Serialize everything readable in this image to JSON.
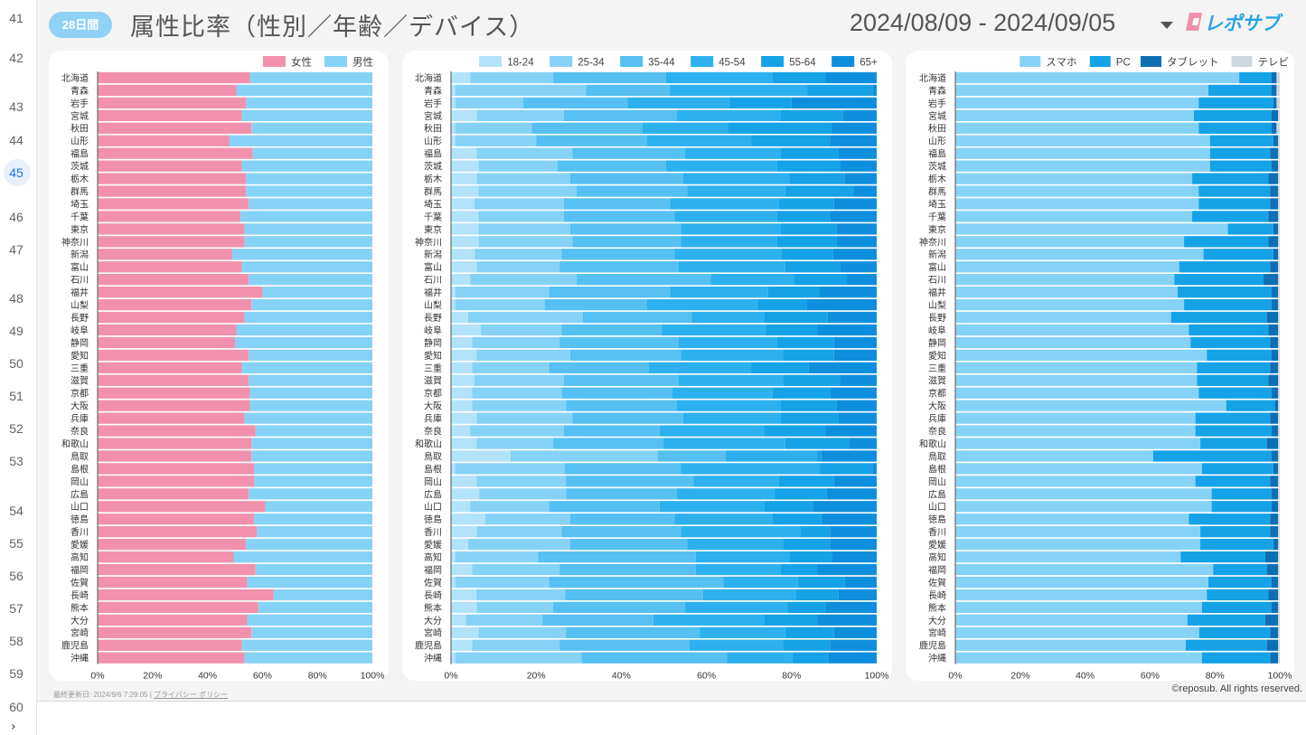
{
  "sheet": {
    "row_numbers": [
      "41",
      "42",
      "43",
      "44",
      "45",
      "46",
      "47",
      "48",
      "49",
      "50",
      "51",
      "52",
      "53",
      "54",
      "55",
      "56",
      "57",
      "58",
      "59",
      "60"
    ],
    "active_row": "45"
  },
  "header": {
    "period_badge": "28日間",
    "title": "属性比率（性別／年齢／デバイス）",
    "date_range": "2024/08/09 - 2024/09/05",
    "logo_text": "レポサブ"
  },
  "footer": {
    "updated": "最終更新日: 2024/9/6 7:29:05",
    "separator": "|",
    "privacy": "プライバシー ポリシー",
    "copyright": "©reposub. All rights reserved."
  },
  "colors": {
    "female": "#f291ad",
    "male": "#86d2f7",
    "age": [
      "#b3e3fb",
      "#86d2f7",
      "#55c0f1",
      "#2db1ee",
      "#15a2e7",
      "#0e8fdd"
    ],
    "device": [
      "#86d2f7",
      "#15a2e7",
      "#0d6eb4",
      "#cdd8de"
    ]
  },
  "chart_data": [
    {
      "type": "bar",
      "orientation": "horizontal",
      "stacked": "percent",
      "categories": [
        "北海道",
        "青森",
        "岩手",
        "宮城",
        "秋田",
        "山形",
        "福島",
        "茨城",
        "栃木",
        "群馬",
        "埼玉",
        "千葉",
        "東京",
        "神奈川",
        "新潟",
        "富山",
        "石川",
        "福井",
        "山梨",
        "長野",
        "岐阜",
        "静岡",
        "愛知",
        "三重",
        "滋賀",
        "京都",
        "大阪",
        "兵庫",
        "奈良",
        "和歌山",
        "鳥取",
        "島根",
        "岡山",
        "広島",
        "山口",
        "徳島",
        "香川",
        "愛媛",
        "高知",
        "福岡",
        "佐賀",
        "長崎",
        "熊本",
        "大分",
        "宮崎",
        "鹿児島",
        "沖縄"
      ],
      "legend": "top-right",
      "xlim": [
        0,
        100
      ],
      "xticks": [
        "0%",
        "20%",
        "40%",
        "60%",
        "80%",
        "100%"
      ],
      "series": [
        {
          "name": "女性",
          "values": [
            55.5,
            50.5,
            54,
            52.5,
            56,
            48,
            56.5,
            52.5,
            54,
            54,
            55,
            52,
            53.5,
            53.5,
            49,
            52.5,
            55,
            60,
            56,
            53.5,
            50.5,
            50,
            55,
            52.5,
            55,
            55.5,
            55.5,
            53.5,
            57.5,
            56,
            56,
            57,
            57,
            55,
            61,
            57,
            58,
            54,
            49.5,
            57.5,
            54.5,
            64,
            58.5,
            54.5,
            56,
            52.5,
            53.5
          ]
        },
        {
          "name": "男性",
          "values": [
            44.5,
            49.5,
            46,
            47.5,
            44,
            52,
            43.5,
            47.5,
            46,
            46,
            45,
            48,
            46.5,
            46.5,
            51,
            47.5,
            45,
            40,
            44,
            46.5,
            49.5,
            50,
            45,
            47.5,
            45,
            44.5,
            44.5,
            46.5,
            42.5,
            44,
            44,
            43,
            43,
            45,
            39,
            43,
            42,
            46,
            50.5,
            42.5,
            45.5,
            36,
            41.5,
            45.5,
            44,
            47.5,
            46.5
          ]
        }
      ]
    },
    {
      "type": "bar",
      "orientation": "horizontal",
      "stacked": "percent",
      "categories": [
        "北海道",
        "青森",
        "岩手",
        "宮城",
        "秋田",
        "山形",
        "福島",
        "茨城",
        "栃木",
        "群馬",
        "埼玉",
        "千葉",
        "東京",
        "神奈川",
        "新潟",
        "富山",
        "石川",
        "福井",
        "山梨",
        "長野",
        "岐阜",
        "静岡",
        "愛知",
        "三重",
        "滋賀",
        "京都",
        "大阪",
        "兵庫",
        "奈良",
        "和歌山",
        "鳥取",
        "島根",
        "岡山",
        "広島",
        "山口",
        "徳島",
        "香川",
        "愛媛",
        "高知",
        "福岡",
        "佐賀",
        "長崎",
        "熊本",
        "大分",
        "宮崎",
        "鹿児島",
        "沖縄"
      ],
      "legend": "top-right",
      "xlim": [
        0,
        100
      ],
      "xticks": [
        "0%",
        "20%",
        "40%",
        "60%",
        "80%",
        "100%"
      ],
      "series": [
        {
          "name": "18-24",
          "values": [
            4.5,
            1,
            1,
            6,
            1,
            1,
            6,
            6.5,
            6,
            6.5,
            5.5,
            6.5,
            6.5,
            6.5,
            5.5,
            6,
            4.5,
            1,
            1,
            4,
            7,
            5,
            6,
            5,
            5.5,
            5,
            5,
            6,
            4.5,
            6,
            14,
            1,
            6,
            6.5,
            4.5,
            8,
            6,
            4,
            1,
            5,
            1,
            6,
            6,
            3.5,
            6.5,
            5,
            1
          ]
        },
        {
          "name": "25-34",
          "values": [
            19.5,
            31,
            16,
            20.5,
            18,
            19,
            22.5,
            18.5,
            22,
            23,
            21,
            20,
            21.5,
            22,
            20,
            19.5,
            25,
            22,
            21,
            27,
            19,
            20.5,
            22,
            18,
            21,
            21,
            22,
            22.5,
            22,
            18,
            34.5,
            26,
            21,
            20,
            18.5,
            20,
            20,
            24,
            19.5,
            20.5,
            22,
            21,
            18,
            18,
            20.5,
            20.5,
            30
          ]
        },
        {
          "name": "35-44",
          "values": [
            26.5,
            20,
            24.5,
            26.5,
            26,
            26,
            26.5,
            25.5,
            26.5,
            26,
            25,
            26,
            26,
            25.5,
            26,
            28,
            31.5,
            28.5,
            24,
            25.5,
            23.5,
            28,
            26,
            23.5,
            27,
            26,
            26,
            26,
            22.5,
            26,
            16,
            27.5,
            30,
            25.5,
            26,
            24.5,
            28,
            27.5,
            37,
            32,
            41,
            32.5,
            31,
            26,
            31.5,
            30.5,
            34.5
          ]
        },
        {
          "name": "45-54",
          "values": [
            25,
            32.5,
            24,
            24.5,
            20,
            24.5,
            22.5,
            26,
            25,
            23,
            25.5,
            24,
            23.5,
            22.5,
            24.5,
            25,
            19.5,
            23,
            26,
            17,
            24.5,
            23,
            24,
            24,
            24.5,
            23.5,
            24.5,
            23,
            24.5,
            28.5,
            21.5,
            33,
            20,
            22.5,
            24.5,
            23,
            28,
            22.5,
            22,
            20,
            17.5,
            22,
            24,
            26,
            20,
            22,
            15.5
          ]
        },
        {
          "name": "55-64",
          "values": [
            12.5,
            15.5,
            14.5,
            14.5,
            24.5,
            18.5,
            13.5,
            15,
            13,
            16,
            13,
            12.5,
            13,
            14,
            12,
            13,
            12.5,
            12,
            11.5,
            15,
            12,
            13.5,
            12,
            13.5,
            13.5,
            13.5,
            13,
            13.5,
            14.5,
            15,
            1,
            12.5,
            13,
            12,
            11.5,
            11.5,
            7,
            11,
            10,
            8.5,
            11,
            10,
            9,
            12.5,
            11.5,
            11,
            8.5
          ]
        },
        {
          "name": "65+",
          "values": [
            12,
            1,
            20,
            8,
            10.5,
            11,
            9,
            8.5,
            7.5,
            5.5,
            10,
            11,
            9.5,
            9.5,
            10,
            8.5,
            7,
            13.5,
            16.5,
            11.5,
            14,
            10,
            10,
            16,
            8.5,
            11,
            9.5,
            9,
            12,
            6.5,
            13,
            1,
            10,
            11.5,
            15,
            13,
            11,
            11,
            10.5,
            14,
            7.5,
            9,
            12,
            14,
            10,
            11,
            11.5
          ]
        }
      ]
    },
    {
      "type": "bar",
      "orientation": "horizontal",
      "stacked": "percent",
      "categories": [
        "北海道",
        "青森",
        "岩手",
        "宮城",
        "秋田",
        "山形",
        "福島",
        "茨城",
        "栃木",
        "群馬",
        "埼玉",
        "千葉",
        "東京",
        "神奈川",
        "新潟",
        "富山",
        "石川",
        "福井",
        "山梨",
        "長野",
        "岐阜",
        "静岡",
        "愛知",
        "三重",
        "滋賀",
        "京都",
        "大阪",
        "兵庫",
        "奈良",
        "和歌山",
        "鳥取",
        "島根",
        "岡山",
        "広島",
        "山口",
        "徳島",
        "香川",
        "愛媛",
        "高知",
        "福岡",
        "佐賀",
        "長崎",
        "熊本",
        "大分",
        "宮崎",
        "鹿児島",
        "沖縄"
      ],
      "legend": "top-right",
      "xlim": [
        0,
        100
      ],
      "xticks": [
        "0%",
        "20%",
        "40%",
        "60%",
        "80%",
        "100%"
      ],
      "series": [
        {
          "name": "スマホ",
          "values": [
            87.5,
            78,
            75,
            73.5,
            75,
            78.5,
            78.5,
            78.5,
            73,
            75,
            75,
            73,
            84,
            70.5,
            76.5,
            69,
            67.5,
            68.5,
            70.5,
            66.5,
            72,
            72.5,
            77.5,
            74.5,
            74.5,
            75,
            83.5,
            74,
            74,
            75.5,
            61,
            76,
            74,
            79,
            79,
            72,
            75.5,
            75.5,
            69.5,
            79.5,
            78,
            77.5,
            76,
            71.5,
            75.5,
            71,
            76
          ]
        },
        {
          "name": "PC",
          "values": [
            10,
            19.5,
            23,
            24,
            22.5,
            19.5,
            18.5,
            19,
            23.5,
            22,
            22,
            23.5,
            14,
            26,
            21.5,
            28,
            27.5,
            29,
            27,
            29.5,
            24.5,
            24.5,
            20,
            22.5,
            22,
            22.5,
            15,
            23,
            23.5,
            20.5,
            36.5,
            22,
            23,
            18.5,
            18.5,
            25,
            21.5,
            22.5,
            26,
            16.5,
            19.5,
            19,
            21.5,
            24,
            22,
            25,
            21
          ]
        },
        {
          "name": "タブレット",
          "values": [
            1.5,
            1.5,
            1,
            2,
            1.5,
            1.5,
            2.5,
            2,
            3,
            2.5,
            2.5,
            3,
            1.5,
            3,
            1.5,
            2.5,
            4.5,
            2,
            2,
            3.5,
            3,
            2.5,
            2,
            2.5,
            3,
            2,
            1,
            2.5,
            2,
            3.5,
            2,
            1.5,
            2.5,
            2,
            2,
            2.5,
            2.5,
            1.5,
            4,
            3.5,
            2,
            3,
            2,
            4,
            2.5,
            3.5,
            2.5
          ]
        },
        {
          "name": "テレビ",
          "values": [
            1,
            1,
            1,
            0.5,
            1,
            0.5,
            0.5,
            0.5,
            0.5,
            0.5,
            0.5,
            0.5,
            0.5,
            0.5,
            0.5,
            0.5,
            0.5,
            0.5,
            0.5,
            0.5,
            0.5,
            0.5,
            0.5,
            0.5,
            0.5,
            0.5,
            0.5,
            0.5,
            0.5,
            0.5,
            0.5,
            0.5,
            0.5,
            0.5,
            0.5,
            0.5,
            0.5,
            0.5,
            0.5,
            0.5,
            0.5,
            0.5,
            0.5,
            0.5,
            0.5,
            0.5,
            0.5
          ]
        }
      ]
    }
  ]
}
